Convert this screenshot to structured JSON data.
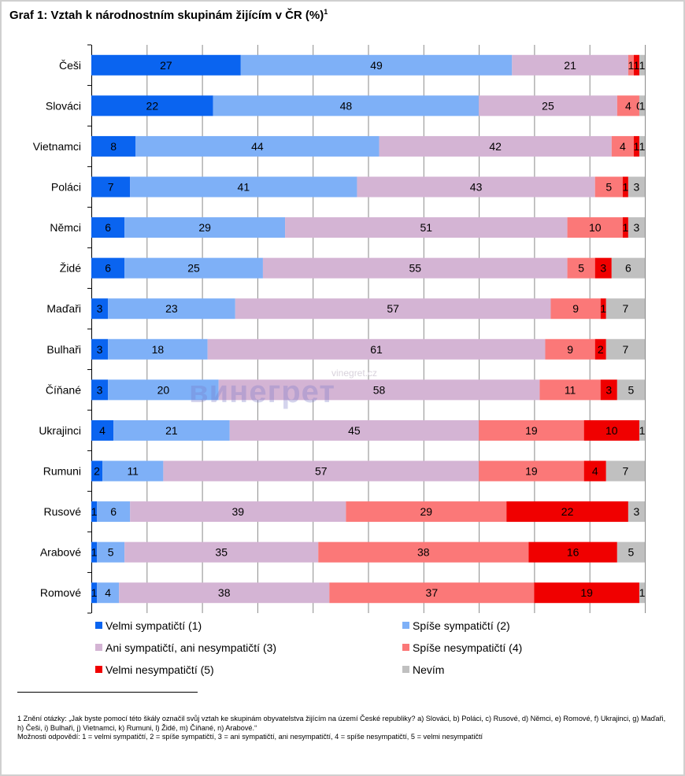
{
  "title": "Graf 1: Vztah k národnostním skupinám žijícím v ČR (%)",
  "title_sup": "1",
  "watermark": {
    "small": "vinegret.cz",
    "big": "винегрет"
  },
  "chart_data": {
    "type": "bar",
    "stacked": true,
    "orientation": "horizontal",
    "xlim": [
      0,
      100
    ],
    "grid": true,
    "legend_position": "bottom",
    "categories": [
      "Češi",
      "Slováci",
      "Vietnamci",
      "Poláci",
      "Němci",
      "Židé",
      "Maďaři",
      "Bulhaři",
      "Číňané",
      "Ukrajinci",
      "Rumuni",
      "Rusové",
      "Arabové",
      "Romové"
    ],
    "series": [
      {
        "name": "Velmi sympatičtí (1)",
        "color": "#0a64f0",
        "values": [
          27,
          22,
          8,
          7,
          6,
          6,
          3,
          3,
          3,
          4,
          2,
          1,
          1,
          1
        ]
      },
      {
        "name": "Spíše sympatičtí (2)",
        "color": "#7eb0f7",
        "values": [
          49,
          48,
          44,
          41,
          29,
          25,
          23,
          18,
          20,
          21,
          11,
          6,
          5,
          4
        ]
      },
      {
        "name": "Ani sympatičtí, ani nesympatičtí (3)",
        "color": "#d4b4d4",
        "values": [
          21,
          25,
          42,
          43,
          51,
          55,
          57,
          61,
          58,
          45,
          57,
          39,
          35,
          38
        ]
      },
      {
        "name": "Spíše nesympatičtí (4)",
        "color": "#fb7878",
        "values": [
          1,
          4,
          4,
          5,
          10,
          5,
          9,
          9,
          11,
          19,
          19,
          29,
          38,
          37
        ]
      },
      {
        "name": "Velmi nesympatičtí (5)",
        "color": "#f00000",
        "values": [
          1,
          0,
          1,
          1,
          1,
          3,
          1,
          2,
          3,
          10,
          4,
          22,
          16,
          19
        ]
      },
      {
        "name": "Nevím",
        "color": "#c0c0c0",
        "values": [
          1,
          1,
          1,
          3,
          3,
          6,
          7,
          7,
          5,
          1,
          7,
          3,
          5,
          1
        ]
      }
    ]
  },
  "footnote": {
    "line1": "1 Znění otázky: „Jak byste pomocí této škály označil svůj vztah ke skupinám obyvatelstva žijícím na území České republiky? a) Slováci, b) Poláci, c) Rusové, d) Němci, e) Romové, f) Ukrajinci, g) Maďaři, h) Češi, i) Bulhaři, j) Vietnamci, k) Rumuni, l) Židé, m) Číňané, n) Arabové.“",
    "line2": "Možnosti odpovědí: 1 = velmi sympatičtí, 2 = spíše sympatičtí, 3 = ani sympatičtí, ani nesympatičtí, 4 = spíše nesympatičtí, 5 = velmi nesympatičtí"
  }
}
